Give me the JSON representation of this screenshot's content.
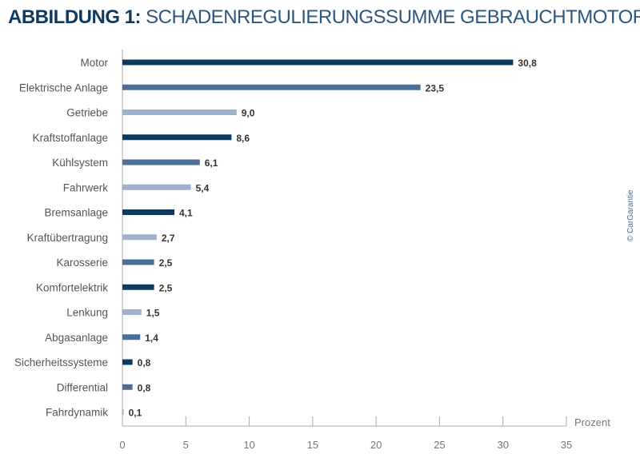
{
  "chart_data": {
    "type": "bar",
    "orientation": "horizontal",
    "title_bold": "ABBILDUNG 1:",
    "title": "SCHADENREGULIERUNGSSUMME GEBRAUCHTMOTORRÄDER",
    "xlabel": "Prozent",
    "xlim": [
      0,
      35
    ],
    "xticks": [
      0,
      5,
      10,
      15,
      20,
      25,
      30,
      35
    ],
    "categories": [
      "Motor",
      "Elektrische Anlage",
      "Getriebe",
      "Kraftstoffanlage",
      "Kühlsystem",
      "Fahrwerk",
      "Bremsanlage",
      "Kraftübertragung",
      "Karosserie",
      "Komfortelektrik",
      "Lenkung",
      "Abgasanlage",
      "Sicherheitssysteme",
      "Differential",
      "Fahrdynamik"
    ],
    "values": [
      30.8,
      23.5,
      9.0,
      8.6,
      6.1,
      5.4,
      4.1,
      2.7,
      2.5,
      2.5,
      1.5,
      1.4,
      0.8,
      0.8,
      0.1
    ],
    "value_labels": [
      "30,8",
      "23,5",
      "9,0",
      "8,6",
      "6,1",
      "5,4",
      "4,1",
      "2,7",
      "2,5",
      "2,5",
      "1,5",
      "1,4",
      "0,8",
      "0,8",
      "0,1"
    ],
    "bar_colors": [
      "#0f3a5f",
      "#4a6e96",
      "#9fb1cc",
      "#0f3a5f",
      "#4a6e96",
      "#9fb1cc",
      "#0f3a5f",
      "#9fb1cc",
      "#4a6e96",
      "#0f3a5f",
      "#9fb1cc",
      "#4a6e96",
      "#0f3a5f",
      "#4a6e96",
      "#9fb1cc"
    ],
    "grid": false,
    "source": "© CarGarantie"
  }
}
